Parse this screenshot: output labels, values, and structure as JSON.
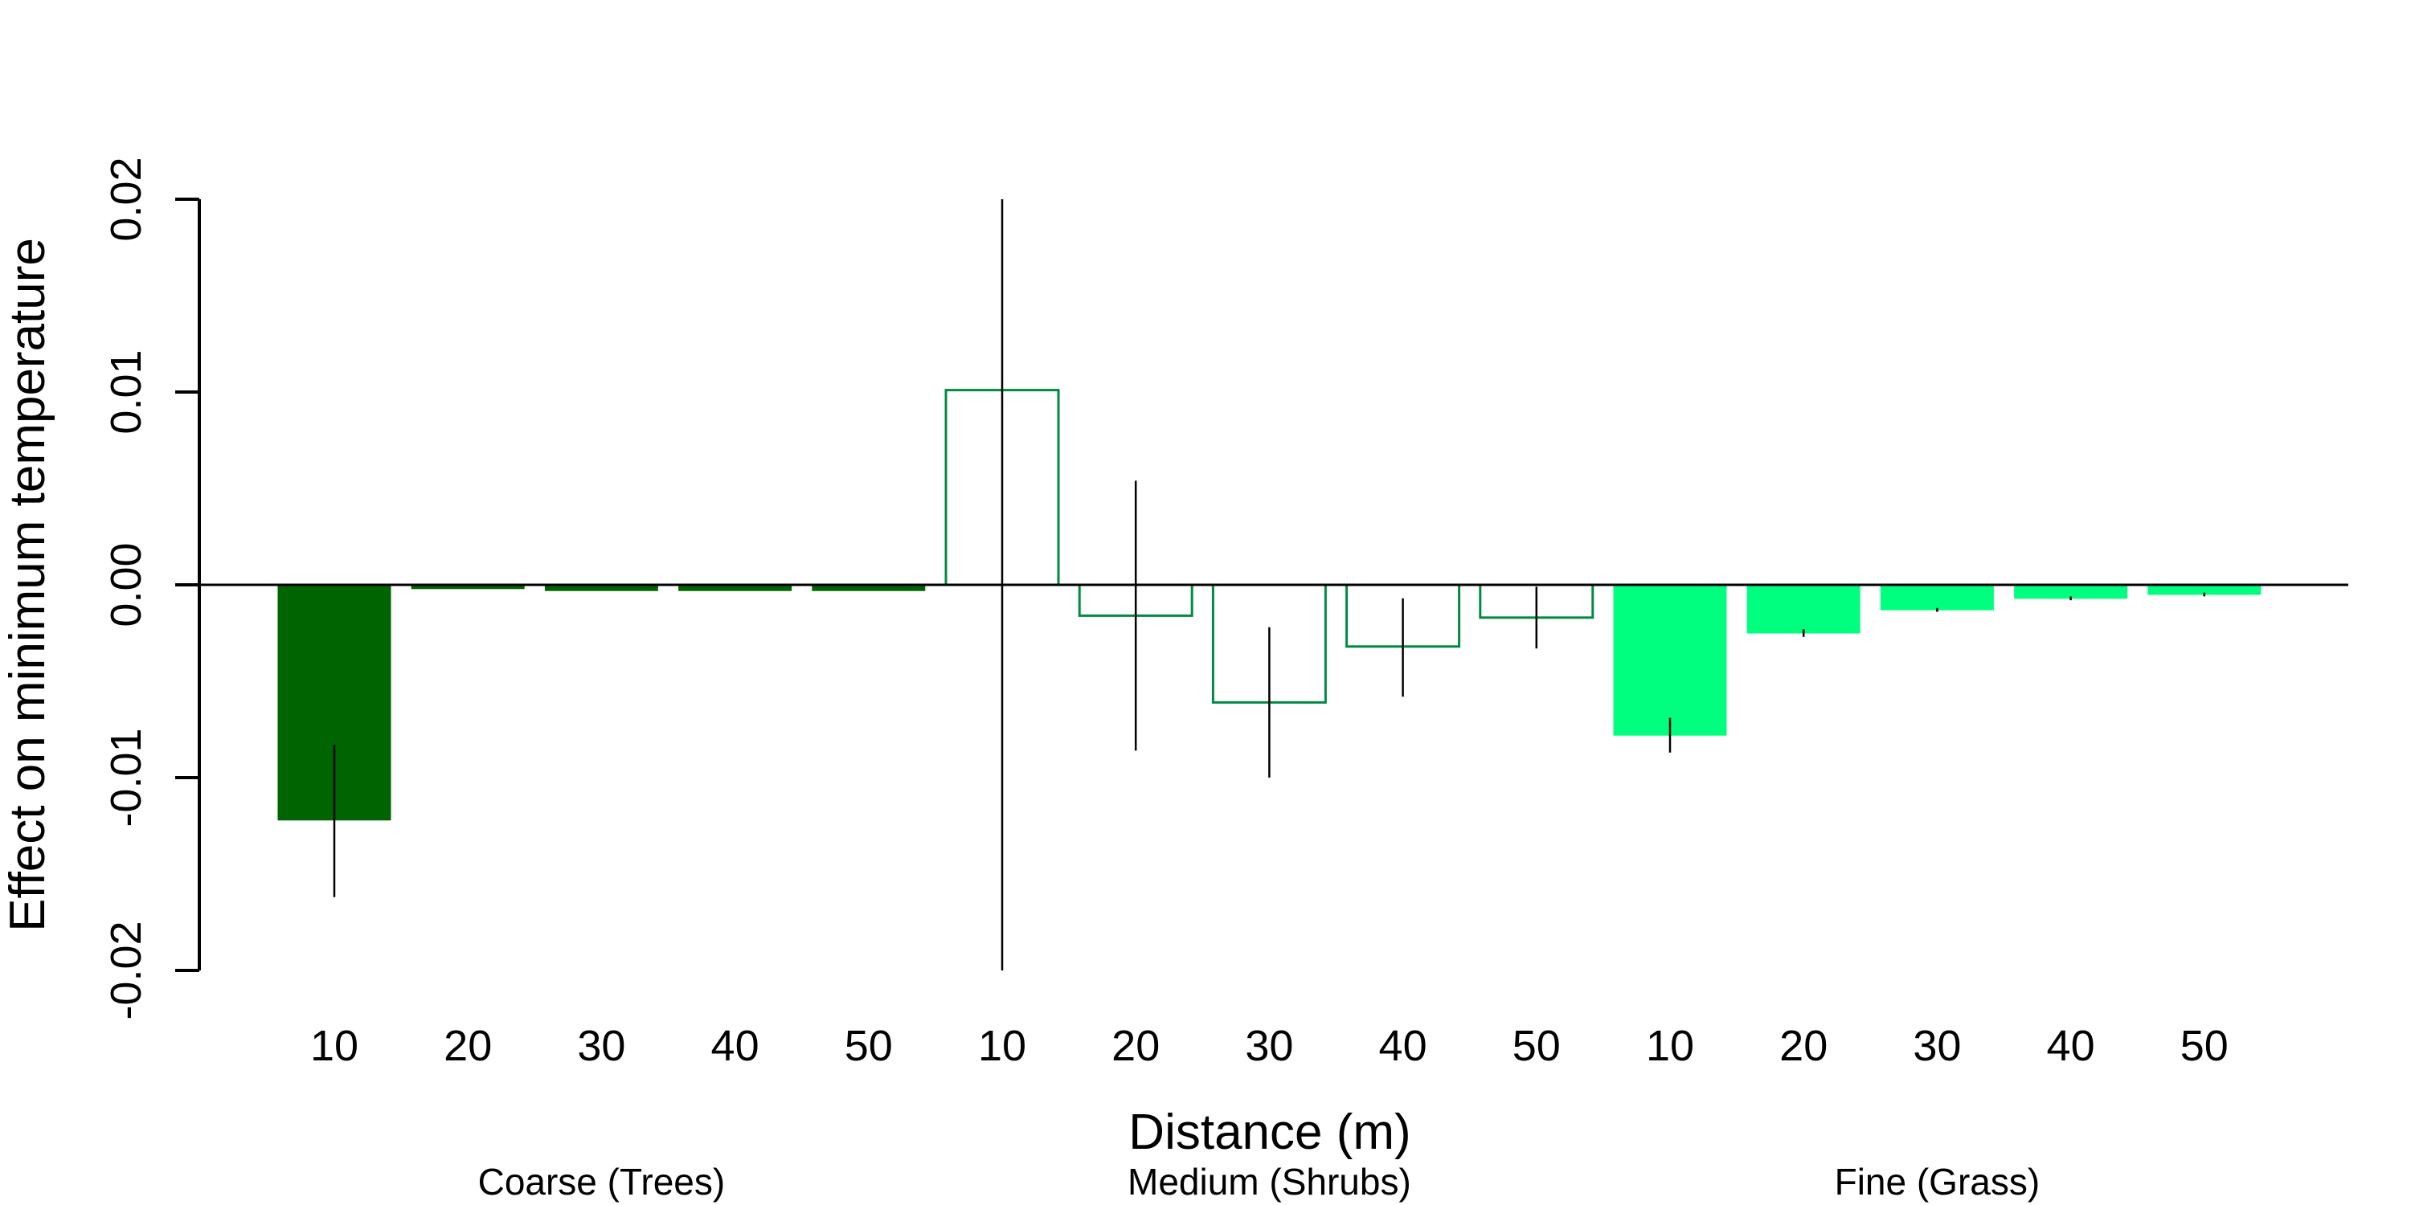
{
  "chart_data": {
    "type": "bar",
    "xlabel": "Distance (m)",
    "ylabel": "Effect on minimum temperature",
    "ylim": [
      -0.02,
      0.02
    ],
    "yticks": [
      "0.02",
      "0.01",
      "0.00",
      "-0.01",
      "-0.02"
    ],
    "ytick_values": [
      0.02,
      0.01,
      0.0,
      -0.01,
      -0.02
    ],
    "groups": [
      {
        "name": "Coarse (Trees)",
        "style": "filled",
        "color": "#006400",
        "categories": [
          "10",
          "20",
          "30",
          "40",
          "50"
        ],
        "values": [
          -0.0122,
          -0.0002,
          -0.0003,
          -0.0003,
          -0.0003
        ],
        "error_low": [
          -0.0162,
          -0.0002,
          -0.0003,
          -0.0003,
          -0.0003
        ],
        "error_high": [
          -0.0083,
          -0.0002,
          -0.0003,
          -0.0003,
          -0.0003
        ]
      },
      {
        "name": "Medium (Shrubs)",
        "style": "outline",
        "color": "#008B45",
        "categories": [
          "10",
          "20",
          "30",
          "40",
          "50"
        ],
        "values": [
          0.0101,
          -0.0016,
          -0.0061,
          -0.0032,
          -0.0017
        ],
        "error_low": [
          -0.02,
          -0.0086,
          -0.01,
          -0.0058,
          -0.0033
        ],
        "error_high": [
          0.02,
          0.0054,
          -0.0022,
          -0.0007,
          -0.0001
        ]
      },
      {
        "name": "Fine (Grass)",
        "style": "filled",
        "color": "#00FF7F",
        "categories": [
          "10",
          "20",
          "30",
          "40",
          "50"
        ],
        "values": [
          -0.0078,
          -0.0025,
          -0.0013,
          -0.0007,
          -0.0005
        ],
        "error_low": [
          -0.0087,
          -0.0027,
          -0.0014,
          -0.0008,
          -0.0006
        ],
        "error_high": [
          -0.0069,
          -0.0023,
          -0.0012,
          -0.0006,
          -0.0004
        ]
      }
    ],
    "grid": false,
    "legend": "none"
  }
}
